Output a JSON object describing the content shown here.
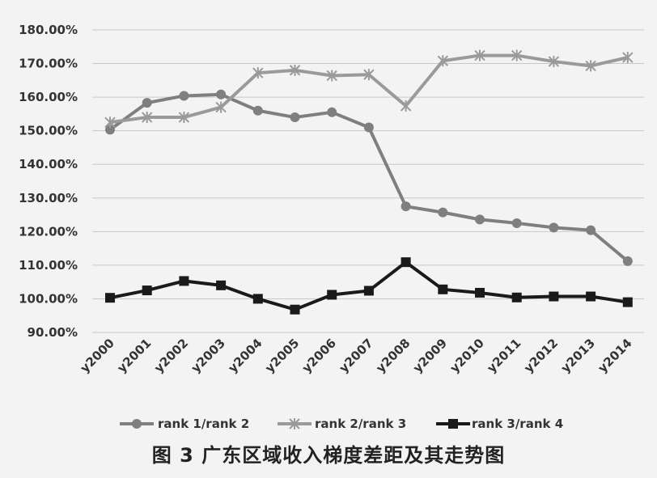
{
  "caption": "图 3   广东区域收入梯度差距及其走势图",
  "chart_data": {
    "type": "line",
    "title": "",
    "xlabel": "",
    "ylabel": "",
    "categories": [
      "y2000",
      "y2001",
      "y2002",
      "y2003",
      "y2004",
      "y2005",
      "y2006",
      "y2007",
      "y2008",
      "y2009",
      "y2010",
      "y2011",
      "y2012",
      "y2013",
      "y2014"
    ],
    "ylim": [
      90,
      180
    ],
    "yticks": [
      90,
      100,
      110,
      120,
      130,
      140,
      150,
      160,
      170,
      180
    ],
    "ytick_labels": [
      "90.00%",
      "100.00%",
      "110.00%",
      "120.00%",
      "130.00%",
      "140.00%",
      "150.00%",
      "160.00%",
      "170.00%",
      "180.00%"
    ],
    "grid": true,
    "legend_position": "bottom",
    "series": [
      {
        "name": "rank 1/rank 2",
        "marker": "circle",
        "color": "#7f7f7f",
        "values": [
          150.3,
          158.3,
          160.4,
          160.8,
          156.0,
          154.0,
          155.5,
          151.0,
          127.5,
          125.7,
          123.6,
          122.5,
          121.2,
          120.4,
          111.2
        ]
      },
      {
        "name": "rank 2/rank 3",
        "marker": "star",
        "color": "#9a9a9a",
        "values": [
          152.5,
          154.0,
          154.0,
          157.0,
          167.2,
          168.0,
          166.4,
          166.7,
          157.4,
          170.8,
          172.4,
          172.4,
          170.6,
          169.3,
          171.8
        ]
      },
      {
        "name": "rank 3/rank 4",
        "marker": "square",
        "color": "#1a1a1a",
        "values": [
          100.3,
          102.5,
          105.3,
          104.0,
          100.0,
          96.8,
          101.2,
          102.4,
          110.9,
          102.8,
          101.8,
          100.4,
          100.7,
          100.7,
          99.0
        ]
      }
    ]
  }
}
